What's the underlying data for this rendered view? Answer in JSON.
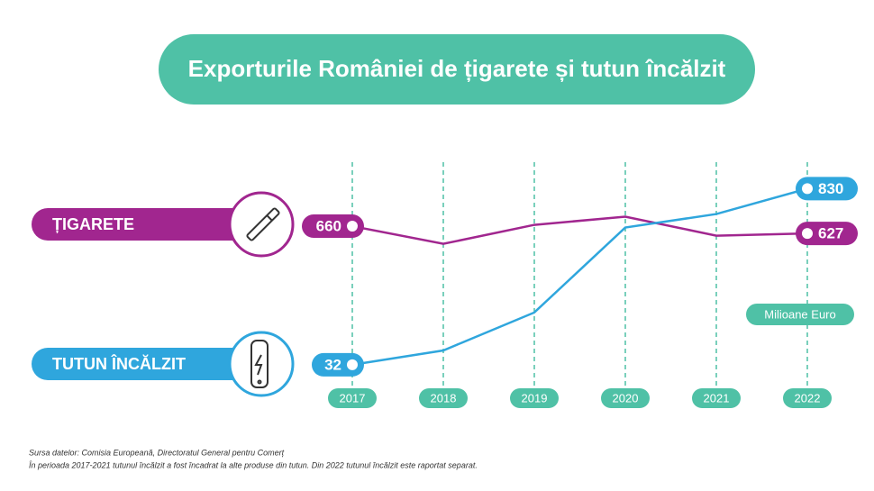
{
  "chart_data": {
    "type": "line",
    "title": "Exporturile României de țigarete și tutun încălzit",
    "categories": [
      "2017",
      "2018",
      "2019",
      "2020",
      "2021",
      "2022"
    ],
    "series": [
      {
        "name": "ȚIGARETE",
        "color": "#a1268f",
        "values": [
          660,
          580,
          666,
          703,
          617,
          627
        ]
      },
      {
        "name": "TUTUN ÎNCĂLZIT",
        "color": "#2fa6dd",
        "values": [
          32,
          97,
          269,
          654,
          715,
          830
        ]
      }
    ],
    "unit_label": "Milioane Euro",
    "ylim": [
      -50,
      950
    ],
    "grid": true,
    "accent_color": "#4fc1a6",
    "notes": [
      "Sursa datelor: Comisia Europeană, Directoratul General pentru Comerț",
      "În perioada 2017-2021 tutunul încălzit a fost încadrat la alte produse din tutun. Din 2022 tutunul încălzit este raportat separat."
    ]
  }
}
